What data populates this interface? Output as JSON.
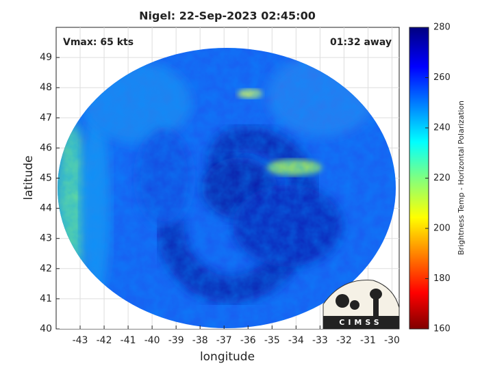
{
  "title": "Nigel: 22-Sep-2023 02:45:00",
  "annotations": [
    "Vmax: 65 kts",
    "01:32 away"
  ],
  "xlabel": "longitude",
  "ylabel": "latitude",
  "xlim": [
    -44,
    -29.7
  ],
  "xticks": [
    -43,
    -42,
    -41,
    -40,
    -39,
    -38,
    -37,
    -36,
    -35,
    -34,
    -33,
    -32,
    -31,
    -30
  ],
  "ylim": [
    40,
    50
  ],
  "yticks": [
    40,
    41,
    42,
    43,
    44,
    45,
    46,
    47,
    48,
    49
  ],
  "grid": true,
  "colorbar": {
    "label": "Brightness Temp - Horizontal Polarization",
    "lim": [
      160,
      280
    ],
    "ticks": [
      160,
      180,
      200,
      220,
      240,
      260,
      280
    ]
  },
  "logo": "CIMSS"
}
